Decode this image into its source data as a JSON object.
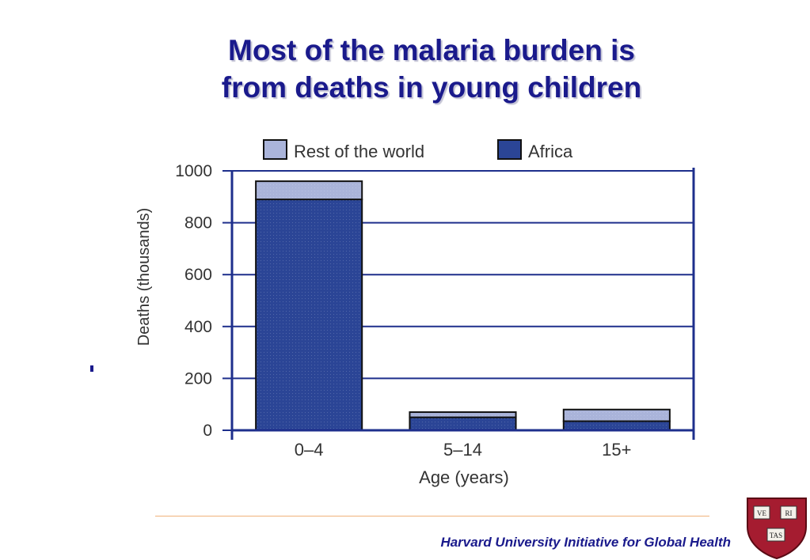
{
  "slide": {
    "title_line1": "Most of the malaria burden is",
    "title_line2": "from deaths in young children",
    "footer": "Harvard University Initiative for Global Health",
    "logo": {
      "icon": "harvard-veritas-shield-icon",
      "lettering": [
        "VE",
        "RI",
        "TAS"
      ],
      "color": "#a51c30"
    }
  },
  "chart_data": {
    "type": "bar",
    "stacked": true,
    "categories": [
      "0–4",
      "5–14",
      "15+"
    ],
    "series": [
      {
        "name": "Africa",
        "values": [
          890,
          50,
          35
        ],
        "color": "#2b4596"
      },
      {
        "name": "Rest of the world",
        "values": [
          70,
          20,
          45
        ],
        "color": "#aab4da"
      }
    ],
    "xlabel": "Age (years)",
    "ylabel": "Deaths (thousands)",
    "ylim": [
      0,
      1000
    ],
    "yticks": [
      0,
      200,
      400,
      600,
      800,
      1000
    ],
    "grid": true,
    "legend": "top",
    "axis_color": "#1e2f8c"
  }
}
